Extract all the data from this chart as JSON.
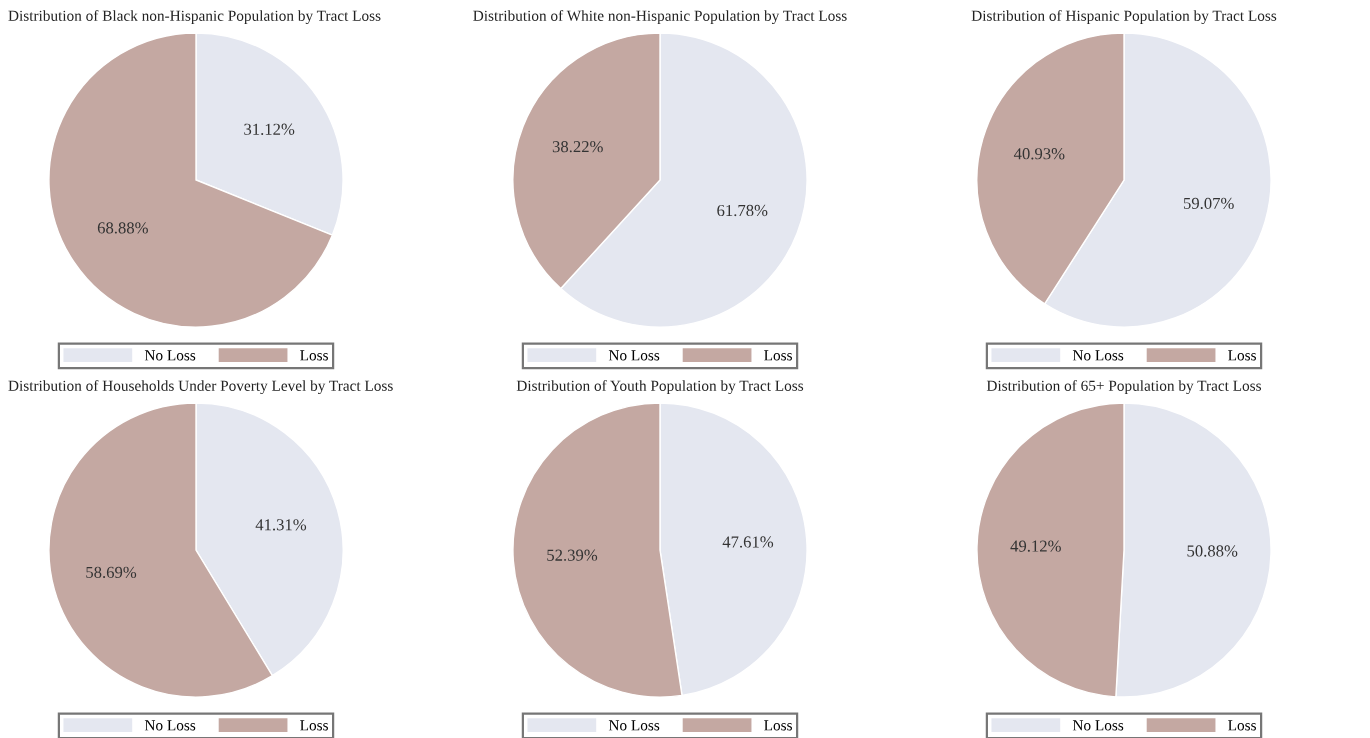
{
  "chart_data": [
    {
      "type": "pie",
      "title": "Distribution of Black non-Hispanic Population by Tract Loss",
      "categories": [
        "No Loss",
        "Loss"
      ],
      "values": [
        31.12,
        68.88
      ],
      "colors": [
        "#e4e7f0",
        "#c4a8a2"
      ],
      "value_labels": [
        "31.12%",
        "68.88%"
      ],
      "legend": "bottom"
    },
    {
      "type": "pie",
      "title": "Distribution of White non-Hispanic Population by Tract Loss",
      "categories": [
        "No Loss",
        "Loss"
      ],
      "values": [
        61.78,
        38.22
      ],
      "colors": [
        "#e4e7f0",
        "#c4a8a2"
      ],
      "value_labels": [
        "61.78%",
        "38.22%"
      ],
      "legend": "bottom"
    },
    {
      "type": "pie",
      "title": "Distribution of Hispanic Population by Tract Loss",
      "categories": [
        "No Loss",
        "Loss"
      ],
      "values": [
        59.07,
        40.93
      ],
      "colors": [
        "#e4e7f0",
        "#c4a8a2"
      ],
      "value_labels": [
        "59.07%",
        "40.93%"
      ],
      "legend": "bottom"
    },
    {
      "type": "pie",
      "title": "Distribution of Households Under Poverty Level by Tract Loss",
      "categories": [
        "No Loss",
        "Loss"
      ],
      "values": [
        41.31,
        58.69
      ],
      "colors": [
        "#e4e7f0",
        "#c4a8a2"
      ],
      "value_labels": [
        "41.31%",
        "58.69%"
      ],
      "legend": "bottom"
    },
    {
      "type": "pie",
      "title": "Distribution of Youth Population by Tract Loss",
      "categories": [
        "No Loss",
        "Loss"
      ],
      "values": [
        47.61,
        52.39
      ],
      "colors": [
        "#e4e7f0",
        "#c4a8a2"
      ],
      "value_labels": [
        "47.61%",
        "52.39%"
      ],
      "legend": "bottom"
    },
    {
      "type": "pie",
      "title": "Distribution of 65+ Population by Tract Loss",
      "categories": [
        "No Loss",
        "Loss"
      ],
      "values": [
        50.88,
        49.12
      ],
      "colors": [
        "#e4e7f0",
        "#c4a8a2"
      ],
      "value_labels": [
        "50.88%",
        "49.12%"
      ],
      "legend": "bottom"
    }
  ]
}
